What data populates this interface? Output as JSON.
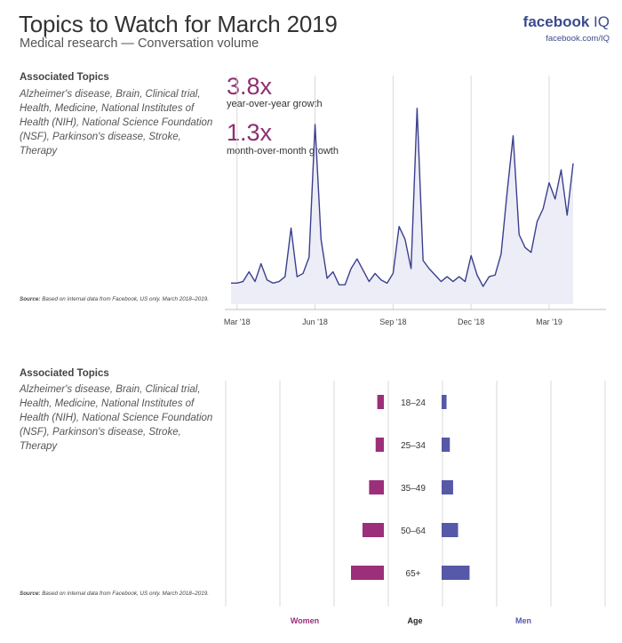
{
  "header": {
    "title": "Topics to Watch for March 2019",
    "subtitle": "Medical research — Conversation volume",
    "brand_main": "facebook",
    "brand_iq": "IQ",
    "brand_url": "facebook.com/IQ"
  },
  "top_panel": {
    "assoc_heading": "Associated Topics",
    "assoc_text": "Alzheimer's disease, Brain, Clinical trial, Health, Medicine, National Institutes of Health (NIH), National Science Foundation (NSF), Parkinson's disease, Stroke, Therapy",
    "source_label": "Source:",
    "source_text": "Based on internal data from Facebook, US only. March 2018–2019.",
    "stat1_value": "3.8x",
    "stat1_label": "year-over-year growth",
    "stat2_value": "1.3x",
    "stat2_label": "month-over-month growth"
  },
  "bottom_panel": {
    "assoc_heading": "Associated Topics",
    "assoc_text": "Alzheimer's disease, Brain, Clinical trial, Health, Medicine, National Institutes of Health (NIH), National Science Foundation (NSF), Parkinson's disease, Stroke, Therapy",
    "source_label": "Source:",
    "source_text": "Based on internal data from Facebook, US only. March 2018–2019."
  },
  "colors": {
    "line": "#3b3f8c",
    "area": "#ecedf6",
    "women": "#9b2f7a",
    "men": "#5559a8",
    "grid": "#d9d9d9",
    "accent": "#8e2f72"
  },
  "chart_data": [
    {
      "type": "area",
      "x_tick_labels": [
        "Mar '18",
        "Jun '18",
        "Sep '18",
        "Dec '18",
        "Mar '19"
      ],
      "x_tick_weeks": [
        1,
        14,
        27,
        40,
        53
      ],
      "ylim": [
        0,
        100
      ],
      "grid": "vertical",
      "series": [
        {
          "values": [
            2,
            2,
            3,
            9,
            3,
            14,
            4,
            2,
            3,
            6,
            36,
            6,
            8,
            18,
            100,
            29,
            5,
            9,
            1,
            1,
            11,
            17,
            10,
            3,
            8,
            4,
            2,
            8,
            37,
            29,
            11,
            110,
            16,
            11,
            7,
            3,
            6,
            3,
            6,
            3,
            19,
            7,
            0,
            6,
            7,
            20,
            58,
            93,
            32,
            24,
            21,
            40,
            48,
            64,
            54,
            72,
            44,
            76
          ]
        }
      ]
    },
    {
      "type": "bar",
      "orientation": "horizontal",
      "categories": [
        "18–24",
        "25–34",
        "35–49",
        "50–64",
        "65+"
      ],
      "series": [
        {
          "name": "Women",
          "values": [
            4,
            5,
            9,
            13,
            20
          ]
        },
        {
          "name": "Men",
          "values": [
            3,
            5,
            7,
            10,
            17
          ]
        }
      ],
      "legend": "bottom",
      "category_axis_label": "Age"
    }
  ]
}
